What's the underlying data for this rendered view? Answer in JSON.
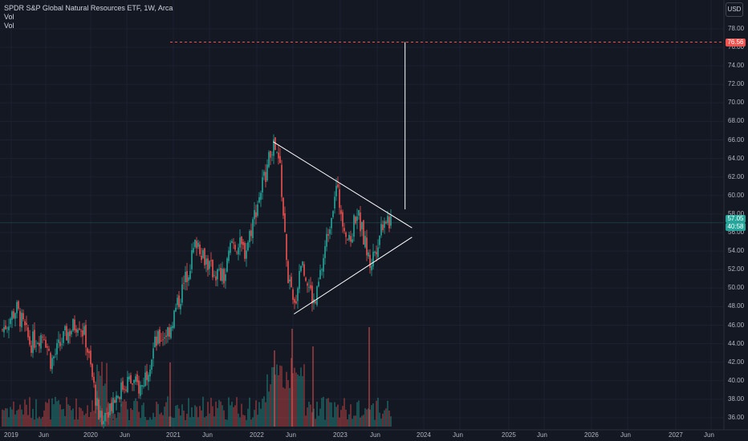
{
  "legend": {
    "title": "SPDR S&P Global Natural Resources ETF, 1W, Arca",
    "vol1": "Vol",
    "vol2": "Vol"
  },
  "currency": "USD",
  "colors": {
    "background": "#141823",
    "up": "#26a69a",
    "down": "#ef5350",
    "target_line": "#ef5350",
    "current_badge": "#26a69a",
    "target_badge": "#ef5350",
    "drawing": "#ffffff",
    "grid": "#1c2030"
  },
  "badges": {
    "target": "76.56",
    "price": "57.05",
    "countdown": "40:58"
  },
  "chart_data": {
    "type": "candlestick",
    "title": "SPDR S&P Global Natural Resources ETF, 1W, Arca",
    "ylim": [
      35,
      80
    ],
    "yticks": [
      "36.00",
      "38.00",
      "40.00",
      "42.00",
      "44.00",
      "46.00",
      "48.00",
      "50.00",
      "52.00",
      "54.00",
      "56.00",
      "58.00",
      "60.00",
      "62.00",
      "64.00",
      "66.00",
      "68.00",
      "70.00",
      "72.00",
      "74.00",
      "76.00",
      "78.00"
    ],
    "xticks": [
      "2019",
      "Jun",
      "2020",
      "Jun",
      "2021",
      "Jun",
      "2022",
      "Jun",
      "2023",
      "Jun",
      "2024",
      "Jun",
      "2025",
      "Jun",
      "2026",
      "Jun",
      "2027",
      "Jun"
    ],
    "price_path": [
      [
        "2019-01",
        45.5
      ],
      [
        "2019-03",
        47.8
      ],
      [
        "2019-05",
        44.0
      ],
      [
        "2019-07",
        45.2
      ],
      [
        "2019-08",
        42.0
      ],
      [
        "2019-10",
        44.8
      ],
      [
        "2019-12",
        46.5
      ],
      [
        "2020-01",
        44.5
      ],
      [
        "2020-03",
        35.6
      ],
      [
        "2020-05",
        38.0
      ],
      [
        "2020-07",
        40.0
      ],
      [
        "2020-09",
        39.2
      ],
      [
        "2020-11",
        44.0
      ],
      [
        "2021-01",
        45.5
      ],
      [
        "2021-03",
        50.0
      ],
      [
        "2021-05",
        55.2
      ],
      [
        "2021-07",
        52.0
      ],
      [
        "2021-09",
        51.0
      ],
      [
        "2021-10",
        55.0
      ],
      [
        "2021-12",
        54.0
      ],
      [
        "2022-02",
        60.0
      ],
      [
        "2022-04",
        65.5
      ],
      [
        "2022-05",
        63.0
      ],
      [
        "2022-06",
        52.0
      ],
      [
        "2022-07",
        47.5
      ],
      [
        "2022-08",
        53.0
      ],
      [
        "2022-10",
        48.0
      ],
      [
        "2022-12",
        56.5
      ],
      [
        "2023-01",
        61.0
      ],
      [
        "2023-03",
        54.5
      ],
      [
        "2023-04",
        58.5
      ],
      [
        "2023-06",
        52.5
      ],
      [
        "2023-07",
        55.0
      ],
      [
        "2023-08",
        57.8
      ],
      [
        "2023-09",
        57.05
      ]
    ],
    "volume_note": "weekly volume bars along bottom",
    "drawings": {
      "triangle_upper": [
        [
          "2022-04",
          65.8
        ],
        [
          "2023-12",
          56.5
        ]
      ],
      "triangle_lower": [
        [
          "2022-07",
          47.2
        ],
        [
          "2023-12",
          55.5
        ]
      ],
      "measured_move": [
        [
          "2023-11",
          58.5
        ],
        [
          "2023-11",
          76.56
        ]
      ],
      "target_level": 76.56
    },
    "current_price": 57.05,
    "grid": true
  }
}
